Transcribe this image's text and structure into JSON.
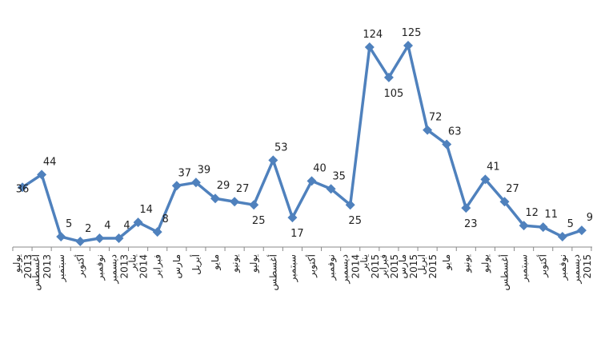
{
  "chart_data": {
    "type": "line",
    "title": "",
    "xlabel": "",
    "ylabel": "",
    "ylim": [
      0,
      130
    ],
    "grid": false,
    "legend": "none",
    "line_color": "#4f81bd",
    "axis_color": "#888888",
    "categories": [
      [
        "يوليو",
        "2013"
      ],
      [
        "أغسطس",
        "2013"
      ],
      [
        "سبتمبر"
      ],
      [
        "أكتوبر"
      ],
      [
        "نوفمبر"
      ],
      [
        "ديسمبر",
        "2013"
      ],
      [
        "يناير",
        "2014"
      ],
      [
        "فبراير"
      ],
      [
        "مارس"
      ],
      [
        "أبريل"
      ],
      [
        "مايو"
      ],
      [
        "يونيو"
      ],
      [
        "يوليو"
      ],
      [
        "أغسطس"
      ],
      [
        "سبتمبر"
      ],
      [
        "أكتوبر"
      ],
      [
        "نوفمبر"
      ],
      [
        "ديسمبر",
        "2014"
      ],
      [
        "يناير",
        "2015"
      ],
      [
        "فبراير",
        "2015"
      ],
      [
        "مارس",
        "2015"
      ],
      [
        "ابريل",
        "2015"
      ],
      [
        "مايو"
      ],
      [
        "يونيو"
      ],
      [
        "يوليو"
      ],
      [
        "أغسطس"
      ],
      [
        "سبتمبر"
      ],
      [
        "أكتوبر"
      ],
      [
        "نوفمبر"
      ],
      [
        "ديسمبر",
        "2015"
      ]
    ],
    "values": [
      36,
      44,
      5,
      2,
      4,
      4,
      14,
      8,
      37,
      39,
      29,
      27,
      25,
      53,
      17,
      40,
      35,
      25,
      124,
      105,
      125,
      72,
      63,
      23,
      41,
      27,
      12,
      11,
      5,
      9
    ],
    "data_labels": [
      "36",
      "44",
      "5",
      "2",
      "4",
      "4",
      "14",
      "8",
      "37",
      "39",
      "29",
      "27",
      "25",
      "53",
      "17",
      "40",
      "35",
      "25",
      "124",
      "105",
      "125",
      "72",
      "63",
      "23",
      "41",
      "27",
      "12",
      "11",
      "5",
      "9"
    ]
  }
}
